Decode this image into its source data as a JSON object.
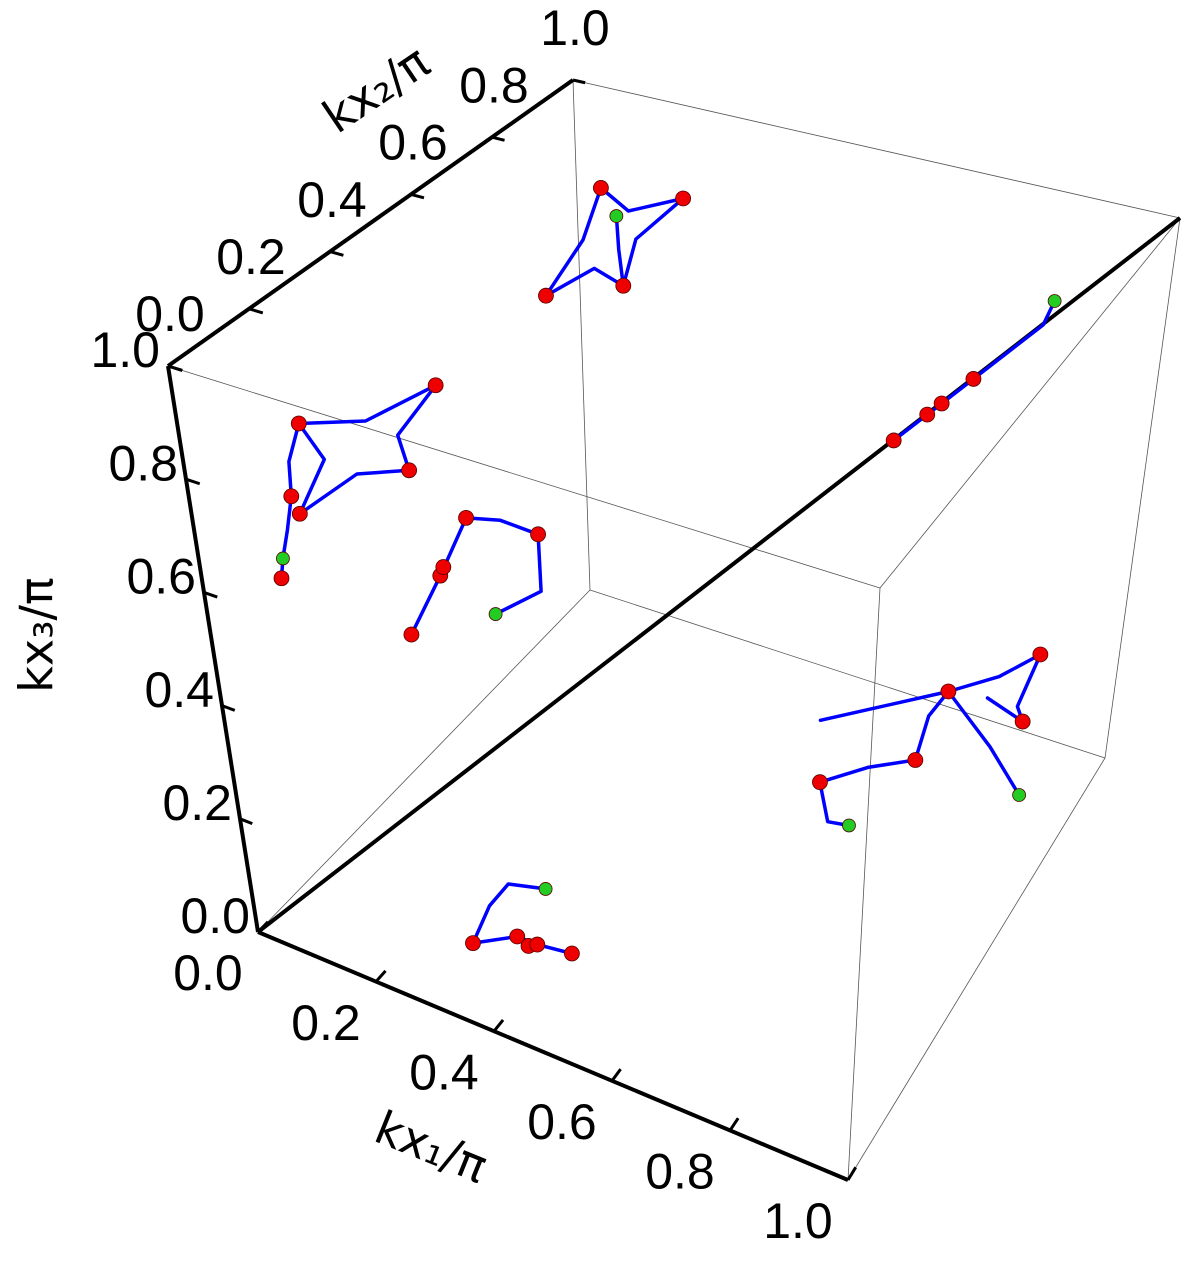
{
  "chart_data": {
    "type": "scatter3d",
    "xlabel": "kx₁/π",
    "ylabel": "kx₂/π",
    "zlabel": "kx₃/π",
    "xlim": [
      0,
      1
    ],
    "ylim": [
      0,
      1
    ],
    "zlim": [
      0,
      1
    ],
    "xticks": [
      {
        "value": 0,
        "label": "0.0"
      },
      0.2,
      0.4,
      0.6,
      0.8,
      {
        "value": 1,
        "label": "1.0"
      }
    ],
    "yticks": [
      {
        "value": 0,
        "label": "0.0"
      },
      0.2,
      0.4,
      0.6,
      0.8,
      {
        "value": 1,
        "label": "1.0"
      }
    ],
    "zticks": [
      {
        "value": 0,
        "label": "0.0"
      },
      0.2,
      0.4,
      0.6,
      0.8,
      {
        "value": 1,
        "label": "1.0"
      }
    ],
    "curves": {
      "color": "#0000ff",
      "lines": [
        {
          "x": [
            0,
            0,
            0,
            0,
            0,
            0,
            0,
            0,
            0,
            0,
            0
          ],
          "y": [
            0.24,
            0.245,
            0.28,
            0.44,
            0.62,
            0.515,
            0.535,
            0.405,
            0.255,
            0.33,
            0.28
          ],
          "z": [
            0.64,
            0.7,
            0.75,
            0.666,
            0.63,
            0.597,
            0.52,
            0.588,
            0.6,
            0.657,
            0.75
          ]
        },
        {
          "x": [
            0,
            0,
            0,
            0
          ],
          "y": [
            0.24,
            0.22,
            0.2,
            0.19
          ],
          "z": [
            0.64,
            0.59,
            0.55,
            0.52
          ]
        },
        {
          "x": [
            0,
            0,
            0,
            0,
            0,
            0,
            0
          ],
          "y": [
            0.5,
            0.59,
            0.67,
            0.76,
            0.86,
            0.86,
            0.73
          ],
          "z": [
            0.235,
            0.29,
            0.35,
            0.29,
            0.2,
            0.09,
            0.13
          ]
        },
        {
          "x": [
            0.3,
            0.265,
            0.21,
            0.277,
            0.325,
            0.326,
            0.375,
            0.318,
            0.3
          ],
          "y": [
            0.44,
            0.6,
            0.74,
            0.7,
            0.765,
            0.636,
            0.515,
            0.538,
            0.44
          ],
          "z": [
            1,
            1,
            1,
            1,
            1,
            1,
            1,
            1,
            1
          ]
        },
        {
          "x": [
            0.27,
            0.32,
            0.375
          ],
          "y": [
            0.68,
            0.6,
            0.515
          ],
          "z": [
            1,
            1,
            1
          ]
        },
        {
          "x": [
            0.28,
            0.26,
            0.26,
            0.315
          ],
          "y": [
            0.16,
            0.25,
            0.31,
            0.33
          ],
          "z": [
            0,
            0,
            0,
            0
          ]
        },
        {
          "x": [
            0.28,
            0.33,
            0.365,
            0.42
          ],
          "y": [
            0.16,
            0.21,
            0.21,
            0.22
          ],
          "z": [
            0,
            0,
            0,
            0
          ]
        },
        {
          "x": [
            0.9,
            0.9,
            0.9,
            0.9,
            0.9,
            0.9,
            0.9,
            0.9,
            0.9,
            0.9,
            0.9,
            0.9
          ],
          "y": [
            0.18,
            0.1,
            0.066,
            0.24,
            0.42,
            0.46,
            0.53,
            0.73,
            0.895,
            0.82,
            0.85,
            0.69
          ],
          "z": [
            0.44,
            0.5,
            0.59,
            0.5,
            0.39,
            0.44,
            0.435,
            0.32,
            0.24,
            0.2,
            0.15,
            0.31
          ]
        },
        {
          "x": [
            0.9,
            0.9,
            0.9
          ],
          "y": [
            0.53,
            0.72,
            0.87
          ],
          "z": [
            0.435,
            0.2,
            0
          ]
        },
        {
          "x": [
            0.69,
            0.9
          ],
          "y": [
            0.53,
            0.53
          ],
          "z": [
            0.31,
            0.435
          ]
        },
        {
          "x": [
            0.705,
            0.74,
            0.755,
            0.788,
            0.86,
            0.87
          ],
          "y": [
            0.705,
            0.74,
            0.755,
            0.788,
            0.86,
            0.87
          ],
          "z": [
            0.705,
            0.74,
            0.755,
            0.788,
            0.86,
            0.9
          ]
        }
      ]
    },
    "series": [
      {
        "color": "#ee0000",
        "x": [
          0,
          0,
          0,
          0,
          0,
          0,
          0,
          0,
          0,
          0,
          0,
          0.3,
          0.21,
          0.325,
          0.375,
          0.28,
          0.33,
          0.355,
          0.365,
          0.42,
          0.9,
          0.9,
          0.9,
          0.9,
          0.9,
          0.705,
          0.74,
          0.755,
          0.788
        ],
        "y": [
          0.28,
          0.62,
          0.535,
          0.255,
          0.24,
          0.19,
          0.67,
          0.86,
          0.59,
          0.6,
          0.5,
          0.44,
          0.74,
          0.765,
          0.515,
          0.16,
          0.21,
          0.2,
          0.21,
          0.22,
          0.066,
          0.42,
          0.53,
          0.895,
          0.85,
          0.705,
          0.74,
          0.755,
          0.788
        ],
        "z": [
          0.75,
          0.63,
          0.52,
          0.6,
          0.64,
          0.52,
          0.35,
          0.2,
          0.29,
          0.3,
          0.235,
          1,
          1,
          1,
          1,
          0,
          0,
          0,
          0,
          0,
          0.59,
          0.39,
          0.435,
          0.24,
          0.15,
          0.705,
          0.74,
          0.755,
          0.788
        ]
      },
      {
        "color": "#22cc22",
        "x": [
          0,
          0,
          0.27,
          0.315,
          0.9,
          0.9,
          0.87
        ],
        "y": [
          0.2,
          0.73,
          0.68,
          0.33,
          0.18,
          0.87,
          0.87
        ],
        "z": [
          0.55,
          0.13,
          1,
          0,
          0.44,
          0,
          0.9
        ]
      }
    ]
  }
}
